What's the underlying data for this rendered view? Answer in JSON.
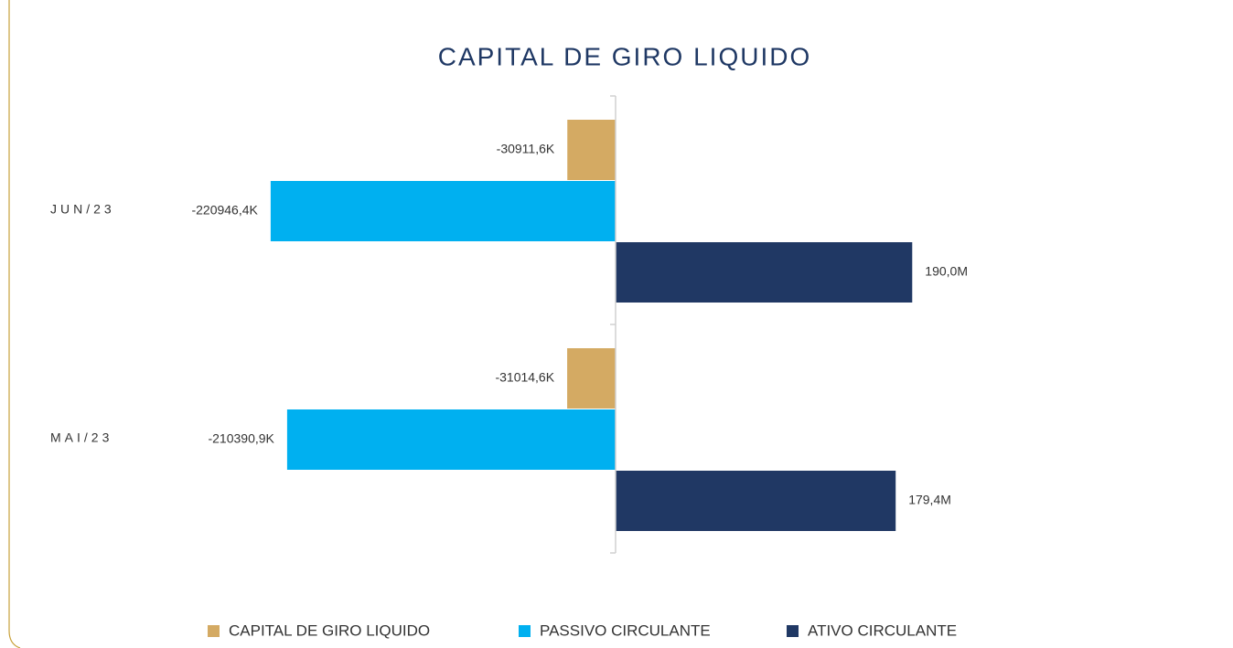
{
  "chart_data": {
    "type": "hbar",
    "title": "CAPITAL DE GIRO LIQUIDO",
    "categories": [
      "JUN/23",
      "MAI/23"
    ],
    "series": [
      {
        "name": "CAPITAL DE GIRO LIQUIDO",
        "color": "#d4aa63",
        "values": [
          -30911.6,
          -31014.6
        ],
        "value_labels": [
          "-30911,6K",
          "-31014,6K"
        ]
      },
      {
        "name": "PASSIVO CIRCULANTE",
        "color": "#00b0f0",
        "values": [
          -220946.4,
          -210390.9
        ],
        "value_labels": [
          "-220946,4K",
          "-210390,9K"
        ]
      },
      {
        "name": "ATIVO CIRCULANTE",
        "color": "#203864",
        "values": [
          190000,
          179400
        ],
        "value_labels": [
          "190,0M",
          "179,4M"
        ]
      }
    ],
    "xlim": [
      -307000,
      307000
    ],
    "legend": "bottom"
  }
}
